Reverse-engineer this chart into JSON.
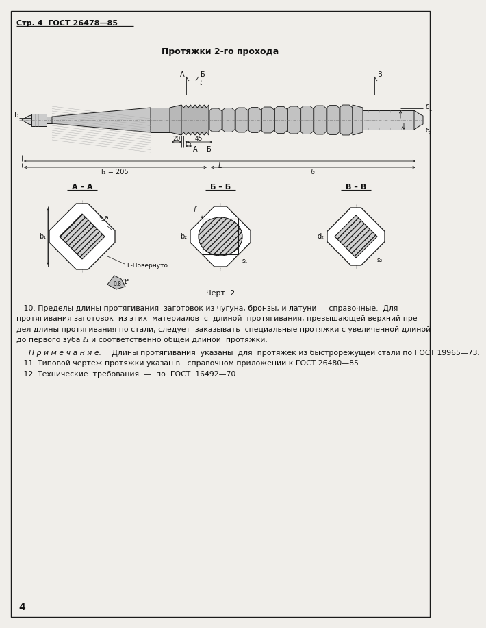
{
  "page_header": "Стр. 4  ГОСТ 26478—85",
  "drawing_title": "Протяжки 2-го прохода",
  "figure_caption": "Черт. 2",
  "text_block_line1": "   10. Пределы длины протягивания  заготовок из чугуна, бронзы, и латуни — справочные.  Для",
  "text_block_line2": "протягивания заготовок  из этих  материалов  с  длиной  протягивания, превышающей верхний пре-",
  "text_block_line3": "дел длины протягивания по стали, следует  заказывать  специальные протяжки с увеличенной длиной",
  "text_block_line4": "до первого зуба ℓ₁ и соответственно общей длиной  протяжки.",
  "note_title": "П р и м е ч а н и е.",
  "note_text": " Длины протягивания  указаны  для  протяжек из быстрорежущей стали по ГОСТ 19965—73.",
  "item_11": "   11. Типовой чертеж протяжки указан в   справочном приложении к ГОСТ 26480—85.",
  "item_12": "   12. Технические  требования  —  по  ГОСТ  16492—70.",
  "page_number": "4",
  "bg_color": "#f0eeea",
  "line_color": "#1a1a1a",
  "text_color": "#111111",
  "fig_w": 624,
  "fig_h": 896
}
